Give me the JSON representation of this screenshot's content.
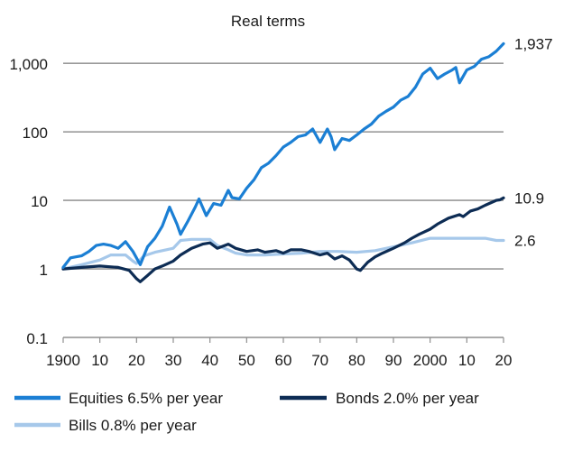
{
  "chart_data": {
    "type": "line",
    "title": "Real terms",
    "xlabel": "",
    "ylabel": "",
    "y_scale": "log",
    "ylim": [
      0.1,
      2500
    ],
    "xlim": [
      1900,
      2020
    ],
    "y_ticks": [
      {
        "value": 0.1,
        "label": "0.1"
      },
      {
        "value": 1,
        "label": "1"
      },
      {
        "value": 10,
        "label": "10"
      },
      {
        "value": 100,
        "label": "100"
      },
      {
        "value": 1000,
        "label": "1,000"
      }
    ],
    "x_ticks": [
      {
        "value": 1900,
        "label": "1900"
      },
      {
        "value": 1910,
        "label": "10"
      },
      {
        "value": 1920,
        "label": "20"
      },
      {
        "value": 1930,
        "label": "30"
      },
      {
        "value": 1940,
        "label": "40"
      },
      {
        "value": 1950,
        "label": "50"
      },
      {
        "value": 1960,
        "label": "60"
      },
      {
        "value": 1970,
        "label": "70"
      },
      {
        "value": 1980,
        "label": "80"
      },
      {
        "value": 1990,
        "label": "90"
      },
      {
        "value": 2000,
        "label": "2000"
      },
      {
        "value": 2010,
        "label": "10"
      },
      {
        "value": 2020,
        "label": "20"
      }
    ],
    "grid": "horizontal",
    "legend_position": "bottom",
    "series": [
      {
        "name": "Equities  6.5% per year",
        "color": "#1b7fd4",
        "end_label": "1,937",
        "x": [
          1900,
          1902,
          1905,
          1907,
          1909,
          1911,
          1913,
          1915,
          1917,
          1919,
          1921,
          1923,
          1925,
          1927,
          1929,
          1931,
          1932,
          1934,
          1936,
          1937,
          1939,
          1941,
          1943,
          1945,
          1946,
          1948,
          1950,
          1952,
          1954,
          1956,
          1958,
          1960,
          1962,
          1964,
          1966,
          1968,
          1970,
          1972,
          1973,
          1974,
          1976,
          1978,
          1980,
          1982,
          1984,
          1986,
          1988,
          1990,
          1992,
          1994,
          1996,
          1998,
          2000,
          2002,
          2004,
          2006,
          2007,
          2008,
          2010,
          2012,
          2014,
          2016,
          2018,
          2020
        ],
        "y": [
          1.05,
          1.45,
          1.55,
          1.8,
          2.2,
          2.3,
          2.2,
          2.0,
          2.5,
          1.8,
          1.15,
          2.1,
          2.8,
          4.2,
          8.0,
          4.5,
          3.2,
          5.0,
          8.0,
          10.5,
          6.0,
          9.0,
          8.5,
          14.0,
          11.0,
          10.5,
          15.0,
          20.0,
          30.0,
          35.0,
          45.0,
          60.0,
          70.0,
          85.0,
          90.0,
          110.0,
          70.0,
          110.0,
          85.0,
          55.0,
          80.0,
          75.0,
          90.0,
          110.0,
          130.0,
          170.0,
          200.0,
          230.0,
          290.0,
          330.0,
          450.0,
          700.0,
          850.0,
          600.0,
          700.0,
          800.0,
          870.0,
          520.0,
          800.0,
          900.0,
          1150.0,
          1250.0,
          1500.0,
          1937.0
        ]
      },
      {
        "name": "Bonds 2.0% per year",
        "color": "#0d2c54",
        "end_label": "10.9",
        "x": [
          1900,
          1905,
          1910,
          1915,
          1918,
          1920,
          1921,
          1923,
          1925,
          1927,
          1930,
          1932,
          1935,
          1938,
          1940,
          1942,
          1945,
          1947,
          1950,
          1953,
          1955,
          1958,
          1960,
          1962,
          1965,
          1967,
          1970,
          1972,
          1974,
          1976,
          1978,
          1980,
          1981,
          1983,
          1985,
          1987,
          1990,
          1993,
          1995,
          1997,
          2000,
          2002,
          2005,
          2008,
          2009,
          2011,
          2013,
          2015,
          2018,
          2019,
          2020
        ],
        "y": [
          1.0,
          1.05,
          1.1,
          1.05,
          0.95,
          0.72,
          0.65,
          0.8,
          1.0,
          1.1,
          1.3,
          1.6,
          2.0,
          2.3,
          2.4,
          2.0,
          2.3,
          2.0,
          1.8,
          1.9,
          1.75,
          1.85,
          1.7,
          1.9,
          1.9,
          1.8,
          1.6,
          1.7,
          1.4,
          1.55,
          1.35,
          1.0,
          0.95,
          1.25,
          1.5,
          1.7,
          2.0,
          2.4,
          2.8,
          3.2,
          3.8,
          4.5,
          5.5,
          6.2,
          5.8,
          7.0,
          7.5,
          8.5,
          10.0,
          10.2,
          10.9
        ]
      },
      {
        "name": "Bills 0.8% per year",
        "color": "#a6c8ea",
        "end_label": "2.6",
        "x": [
          1900,
          1905,
          1910,
          1913,
          1917,
          1919,
          1920,
          1922,
          1925,
          1928,
          1930,
          1932,
          1935,
          1940,
          1942,
          1945,
          1947,
          1950,
          1955,
          1960,
          1965,
          1970,
          1975,
          1980,
          1985,
          1990,
          1995,
          2000,
          2005,
          2010,
          2015,
          2018,
          2020
        ],
        "y": [
          1.0,
          1.15,
          1.35,
          1.6,
          1.6,
          1.3,
          1.2,
          1.55,
          1.75,
          1.9,
          2.0,
          2.6,
          2.7,
          2.7,
          2.2,
          1.9,
          1.7,
          1.6,
          1.6,
          1.65,
          1.7,
          1.8,
          1.8,
          1.75,
          1.85,
          2.1,
          2.4,
          2.8,
          2.8,
          2.8,
          2.8,
          2.6,
          2.6
        ]
      }
    ]
  }
}
